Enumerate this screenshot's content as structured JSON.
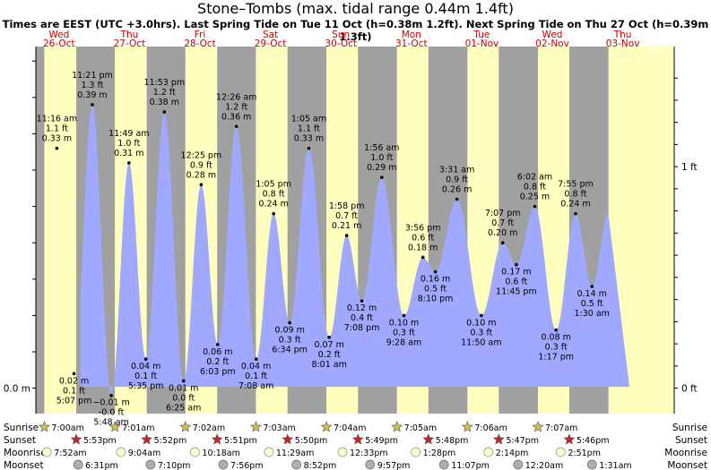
{
  "title": "Stone–Tombs (max. tidal range 0.44m 1.4ft)",
  "subtitle": "Times are EEST (UTC +3.0hrs). Last Spring Tide on Tue 11 Oct (h=0.38m 1.2ft). Next Spring Tide on Thu 27 Oct (h=0.39m 1.3ft)",
  "colors": {
    "day": "#ffffc0",
    "night": "#a0a0a0",
    "water": "#a0a8ff",
    "day_label": "#cc0000",
    "sun_icon": "#d4c040",
    "sunset_icon": "#d02020"
  },
  "chart_data": {
    "type": "area",
    "title": "Stone–Tombs (max. tidal range 0.44m 1.4ft)",
    "ylim_m": [
      -0.035,
      0.47
    ],
    "y_ticks_left": [
      {
        "value": 0.0,
        "label": "0.0 m"
      }
    ],
    "y_ticks_right": [
      {
        "value": 0.0,
        "label": "0 ft"
      },
      {
        "value": 0.3048,
        "label": "1 ft"
      }
    ],
    "days": [
      {
        "dow": "Wed",
        "date": "26-Oct"
      },
      {
        "dow": "Thu",
        "date": "27-Oct"
      },
      {
        "dow": "Fri",
        "date": "28-Oct"
      },
      {
        "dow": "Sat",
        "date": "29-Oct"
      },
      {
        "dow": "Sun",
        "date": "30-Oct"
      },
      {
        "dow": "Mon",
        "date": "31-Oct"
      },
      {
        "dow": "Tue",
        "date": "01-Nov"
      },
      {
        "dow": "Wed",
        "date": "02-Nov"
      },
      {
        "dow": "Thu",
        "date": "03-Nov"
      }
    ],
    "tides": [
      {
        "day": 0,
        "hour": 11.27,
        "m": 0.33,
        "time": "11:16 am",
        "ft": "1.1 ft",
        "meters": "0.33 m",
        "type": "high"
      },
      {
        "day": 0,
        "hour": 17.12,
        "m": 0.02,
        "time": "5:07 pm",
        "ft": "0.1 ft",
        "meters": "0.02 m",
        "type": "low"
      },
      {
        "day": 0,
        "hour": 23.35,
        "m": 0.39,
        "time": "11:21 pm",
        "ft": "1.3 ft",
        "meters": "0.39 m",
        "type": "high"
      },
      {
        "day": 1,
        "hour": 5.8,
        "m": -0.01,
        "time": "5:48 am",
        "ft": "-0.0 ft",
        "meters": "−0.01 m",
        "type": "low"
      },
      {
        "day": 1,
        "hour": 11.82,
        "m": 0.31,
        "time": "11:49 am",
        "ft": "1.0 ft",
        "meters": "0.31 m",
        "type": "high"
      },
      {
        "day": 1,
        "hour": 17.58,
        "m": 0.04,
        "time": "5:35 pm",
        "ft": "0.1 ft",
        "meters": "0.04 m",
        "type": "low"
      },
      {
        "day": 1,
        "hour": 23.88,
        "m": 0.38,
        "time": "11:53 pm",
        "ft": "1.2 ft",
        "meters": "0.38 m",
        "type": "high"
      },
      {
        "day": 2,
        "hour": 6.42,
        "m": 0.01,
        "time": "6:25 am",
        "ft": "0.0 ft",
        "meters": "0.01 m",
        "type": "low"
      },
      {
        "day": 2,
        "hour": 12.42,
        "m": 0.28,
        "time": "12:25 pm",
        "ft": "0.9 ft",
        "meters": "0.28 m",
        "type": "high"
      },
      {
        "day": 2,
        "hour": 18.05,
        "m": 0.06,
        "time": "6:03 pm",
        "ft": "0.2 ft",
        "meters": "0.06 m",
        "type": "low"
      },
      {
        "day": 3,
        "hour": 0.43,
        "m": 0.36,
        "time": "12:26 am",
        "ft": "1.2 ft",
        "meters": "0.36 m",
        "type": "high"
      },
      {
        "day": 3,
        "hour": 7.13,
        "m": 0.04,
        "time": "7:08 am",
        "ft": "0.1 ft",
        "meters": "0.04 m",
        "type": "low"
      },
      {
        "day": 3,
        "hour": 13.08,
        "m": 0.24,
        "time": "1:05 pm",
        "ft": "0.8 ft",
        "meters": "0.24 m",
        "type": "high"
      },
      {
        "day": 3,
        "hour": 18.57,
        "m": 0.09,
        "time": "6:34 pm",
        "ft": "0.3 ft",
        "meters": "0.09 m",
        "type": "low"
      },
      {
        "day": 4,
        "hour": 1.08,
        "m": 0.33,
        "time": "1:05 am",
        "ft": "1.1 ft",
        "meters": "0.33 m",
        "type": "high"
      },
      {
        "day": 4,
        "hour": 8.02,
        "m": 0.07,
        "time": "8:01 am",
        "ft": "0.2 ft",
        "meters": "0.07 m",
        "type": "low"
      },
      {
        "day": 4,
        "hour": 13.97,
        "m": 0.21,
        "time": "1:58 pm",
        "ft": "0.7 ft",
        "meters": "0.21 m",
        "type": "high"
      },
      {
        "day": 4,
        "hour": 19.13,
        "m": 0.12,
        "time": "7:08 pm",
        "ft": "0.4 ft",
        "meters": "0.12 m",
        "type": "low"
      },
      {
        "day": 5,
        "hour": 1.93,
        "m": 0.29,
        "time": "1:56 am",
        "ft": "1.0 ft",
        "meters": "0.29 m",
        "type": "high"
      },
      {
        "day": 5,
        "hour": 9.47,
        "m": 0.1,
        "time": "9:28 am",
        "ft": "0.3 ft",
        "meters": "0.10 m",
        "type": "low"
      },
      {
        "day": 5,
        "hour": 15.93,
        "m": 0.18,
        "time": "3:56 pm",
        "ft": "0.6 ft",
        "meters": "0.18 m",
        "type": "high"
      },
      {
        "day": 5,
        "hour": 20.17,
        "m": 0.16,
        "time": "8:10 pm",
        "ft": "0.5 ft",
        "meters": "0.16 m",
        "type": "low"
      },
      {
        "day": 6,
        "hour": 3.52,
        "m": 0.26,
        "time": "3:31 am",
        "ft": "0.9 ft",
        "meters": "0.26 m",
        "type": "high"
      },
      {
        "day": 6,
        "hour": 11.83,
        "m": 0.1,
        "time": "11:50 am",
        "ft": "0.3 ft",
        "meters": "0.10 m",
        "type": "low"
      },
      {
        "day": 6,
        "hour": 19.12,
        "m": 0.2,
        "time": "7:07 pm",
        "ft": "0.7 ft",
        "meters": "0.20 m",
        "type": "high"
      },
      {
        "day": 6,
        "hour": 23.75,
        "m": 0.17,
        "time": "11:45 pm",
        "ft": "0.6 ft",
        "meters": "0.17 m",
        "type": "low"
      },
      {
        "day": 7,
        "hour": 6.03,
        "m": 0.25,
        "time": "6:02 am",
        "ft": "0.8 ft",
        "meters": "0.25 m",
        "type": "high"
      },
      {
        "day": 7,
        "hour": 13.28,
        "m": 0.08,
        "time": "1:17 pm",
        "ft": "0.3 ft",
        "meters": "0.08 m",
        "type": "low"
      },
      {
        "day": 7,
        "hour": 19.92,
        "m": 0.24,
        "time": "7:55 pm",
        "ft": "0.8 ft",
        "meters": "0.24 m",
        "type": "high"
      },
      {
        "day": 8,
        "hour": 1.5,
        "m": 0.14,
        "time": "1:30 am",
        "ft": "0.5 ft",
        "meters": "0.14 m",
        "type": "low"
      }
    ],
    "sun": [
      {
        "day": 0,
        "sunrise": "7:00am",
        "sunset": "5:53pm",
        "moonrise": "7:52am",
        "moonset": "6:31pm",
        "rise_h": 7.0,
        "set_h": 17.88,
        "mrise_h": 7.87,
        "mset_h": 18.52
      },
      {
        "day": 1,
        "sunrise": "7:01am",
        "sunset": "5:52pm",
        "moonrise": "9:04am",
        "moonset": "7:10pm",
        "rise_h": 7.02,
        "set_h": 17.87,
        "mrise_h": 9.07,
        "mset_h": 19.17
      },
      {
        "day": 2,
        "sunrise": "7:02am",
        "sunset": "5:51pm",
        "moonrise": "10:18am",
        "moonset": "7:56pm",
        "rise_h": 7.03,
        "set_h": 17.85,
        "mrise_h": 10.3,
        "mset_h": 19.93
      },
      {
        "day": 3,
        "sunrise": "7:03am",
        "sunset": "5:50pm",
        "moonrise": "11:29am",
        "moonset": "8:52pm",
        "rise_h": 7.05,
        "set_h": 17.83,
        "mrise_h": 11.48,
        "mset_h": 20.87
      },
      {
        "day": 4,
        "sunrise": "7:04am",
        "sunset": "5:49pm",
        "moonrise": "12:33pm",
        "moonset": "9:57pm",
        "rise_h": 7.07,
        "set_h": 17.82,
        "mrise_h": 12.55,
        "mset_h": 21.95
      },
      {
        "day": 5,
        "sunrise": "7:05am",
        "sunset": "5:48pm",
        "moonrise": "1:28pm",
        "moonset": "11:07pm",
        "rise_h": 7.08,
        "set_h": 17.8,
        "mrise_h": 13.47,
        "mset_h": 23.12
      },
      {
        "day": 6,
        "sunrise": "7:06am",
        "sunset": "5:47pm",
        "moonrise": "2:14pm",
        "moonset": "",
        "rise_h": 7.1,
        "set_h": 17.78,
        "mrise_h": 14.23,
        "mset_h": null
      },
      {
        "day": 7,
        "sunrise": "7:07am",
        "sunset": "5:46pm",
        "moonrise": "2:51pm",
        "moonset": "12:20am",
        "rise_h": 7.12,
        "set_h": 17.77,
        "mrise_h": 14.85,
        "mset_h": 0.33
      },
      {
        "day": 8,
        "sunrise": "",
        "sunset": "",
        "moonrise": "",
        "moonset": "1:31am",
        "rise_h": null,
        "set_h": null,
        "mrise_h": null,
        "mset_h": 1.52
      }
    ],
    "row_labels": {
      "sunrise": "Sunrise",
      "sunset": "Sunset",
      "moonrise": "Moonrise",
      "moonset": "Moonset"
    }
  }
}
